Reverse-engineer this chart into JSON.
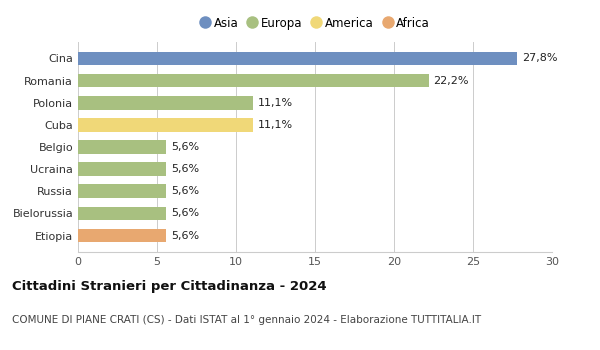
{
  "categories": [
    "Cina",
    "Romania",
    "Polonia",
    "Cuba",
    "Belgio",
    "Ucraina",
    "Russia",
    "Bielorussia",
    "Etiopia"
  ],
  "values": [
    27.8,
    22.2,
    11.1,
    11.1,
    5.6,
    5.6,
    5.6,
    5.6,
    5.6
  ],
  "labels": [
    "27,8%",
    "22,2%",
    "11,1%",
    "11,1%",
    "5,6%",
    "5,6%",
    "5,6%",
    "5,6%",
    "5,6%"
  ],
  "colors": [
    "#6e8fc0",
    "#a8c080",
    "#a8c080",
    "#f0d878",
    "#a8c080",
    "#a8c080",
    "#a8c080",
    "#a8c080",
    "#e8a870"
  ],
  "legend": [
    {
      "label": "Asia",
      "color": "#6e8fc0"
    },
    {
      "label": "Europa",
      "color": "#a8c080"
    },
    {
      "label": "America",
      "color": "#f0d878"
    },
    {
      "label": "Africa",
      "color": "#e8a870"
    }
  ],
  "xlim": [
    0,
    30
  ],
  "xticks": [
    0,
    5,
    10,
    15,
    20,
    25,
    30
  ],
  "title": "Cittadini Stranieri per Cittadinanza - 2024",
  "subtitle": "COMUNE DI PIANE CRATI (CS) - Dati ISTAT al 1° gennaio 2024 - Elaborazione TUTTITALIA.IT",
  "title_fontsize": 9.5,
  "subtitle_fontsize": 7.5,
  "bar_label_fontsize": 8,
  "ytick_fontsize": 8,
  "xtick_fontsize": 8,
  "legend_fontsize": 8.5,
  "background_color": "#ffffff",
  "grid_color": "#cccccc",
  "bar_height": 0.62
}
